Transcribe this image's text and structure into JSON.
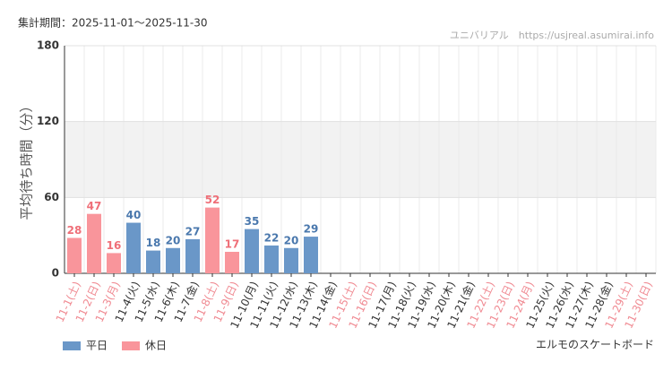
{
  "chart_data": {
    "type": "bar",
    "period": "集計期間：2025-11-01〜2025-11-30",
    "site": "ユニバリアル　https://usjreal.asumirai.info",
    "y_label": "平均待ち時間（分）",
    "attraction": "エルモのスケートボード",
    "categories": [
      "11-1(土)",
      "11-2(日)",
      "11-3(月)",
      "11-4(火)",
      "11-5(水)",
      "11-6(木)",
      "11-7(金)",
      "11-8(土)",
      "11-9(日)",
      "11-10(月)",
      "11-11(火)",
      "11-12(水)",
      "11-13(木)",
      "11-14(金)",
      "11-15(土)",
      "11-16(日)",
      "11-17(月)",
      "11-18(火)",
      "11-19(水)",
      "11-20(木)",
      "11-21(金)",
      "11-22(土)",
      "11-23(日)",
      "11-24(月)",
      "11-25(火)",
      "11-26(水)",
      "11-27(木)",
      "11-28(金)",
      "11-29(土)",
      "11-30(日)"
    ],
    "category_colors": [
      "#f08a92",
      "#f08a92",
      "#f08a92",
      "#333333",
      "#333333",
      "#333333",
      "#333333",
      "#f08a92",
      "#f08a92",
      "#333333",
      "#333333",
      "#333333",
      "#333333",
      "#333333",
      "#f08a92",
      "#f08a92",
      "#333333",
      "#333333",
      "#333333",
      "#333333",
      "#333333",
      "#f08a92",
      "#f08a92",
      "#f08a92",
      "#333333",
      "#333333",
      "#333333",
      "#333333",
      "#f08a92",
      "#f08a92"
    ],
    "series": [
      {
        "name": "平日",
        "color": "#6a97c8",
        "label_color": "#4a78ad",
        "values": [
          null,
          null,
          null,
          40,
          18,
          20,
          27,
          null,
          null,
          35,
          22,
          20,
          29,
          null,
          null,
          null,
          null,
          null,
          null,
          null,
          null,
          null,
          null,
          null,
          null,
          null,
          null,
          null,
          null,
          null
        ]
      },
      {
        "name": "休日",
        "color": "#f9959b",
        "label_color": "#ef6f78",
        "values": [
          28,
          47,
          16,
          null,
          null,
          null,
          null,
          52,
          17,
          null,
          null,
          null,
          null,
          null,
          null,
          null,
          null,
          null,
          null,
          null,
          null,
          null,
          null,
          null,
          null,
          null,
          null,
          null,
          null,
          null
        ]
      }
    ],
    "ylim": [
      0,
      180
    ],
    "yticks": [
      0,
      60,
      120,
      180
    ],
    "grid": true,
    "band_color": "#f2f2f2"
  }
}
